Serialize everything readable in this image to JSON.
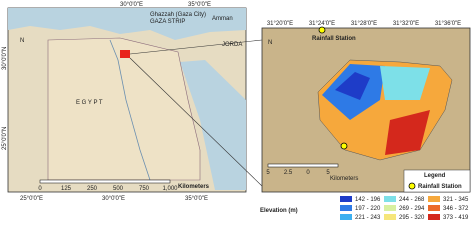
{
  "overview_map": {
    "lon_top": [
      "30°0'0\"E",
      "35°0'0\"E"
    ],
    "lon_bottom": [
      "25°0'0\"E",
      "30°0'0\"E",
      "35°0'0\"E"
    ],
    "lat": [
      "30°0'0\"N",
      "25°0'0\"N"
    ],
    "places": [
      "Ghazzah (Gaza City)",
      "GAZA STRIP",
      "Amman",
      "JORDA",
      "E G Y P T"
    ],
    "north": "N",
    "scale": [
      "0",
      "125",
      "250",
      "500",
      "750",
      "1,000"
    ],
    "scale_unit": "Kilometers"
  },
  "detail_map": {
    "lon_top": [
      "31°20'0\"E",
      "31°24'0\"E",
      "31°28'0\"E",
      "31°32'0\"E",
      "31°36'0\"E"
    ],
    "station_label": "Rainfall Station",
    "north": "N",
    "scale": [
      "5",
      "2.5",
      "0",
      "5"
    ],
    "scale_unit": "Kilometers",
    "legend_title": "Legend",
    "legend_item": "Rainfall Station"
  },
  "elevation_legend": {
    "title": "Elevation (m)",
    "classes": [
      {
        "label": "142 - 196",
        "color": "#1e3cc8"
      },
      {
        "label": "197 - 220",
        "color": "#2e7ae6"
      },
      {
        "label": "221 - 243",
        "color": "#3cb0f0"
      },
      {
        "label": "244 - 268",
        "color": "#7de0e8"
      },
      {
        "label": "269 - 294",
        "color": "#d8f0a0"
      },
      {
        "label": "295 - 320",
        "color": "#f6e67a"
      },
      {
        "label": "321 - 345",
        "color": "#f6a83c"
      },
      {
        "label": "346 - 372",
        "color": "#ec6a28"
      },
      {
        "label": "373 - 419",
        "color": "#d4281c"
      }
    ]
  }
}
